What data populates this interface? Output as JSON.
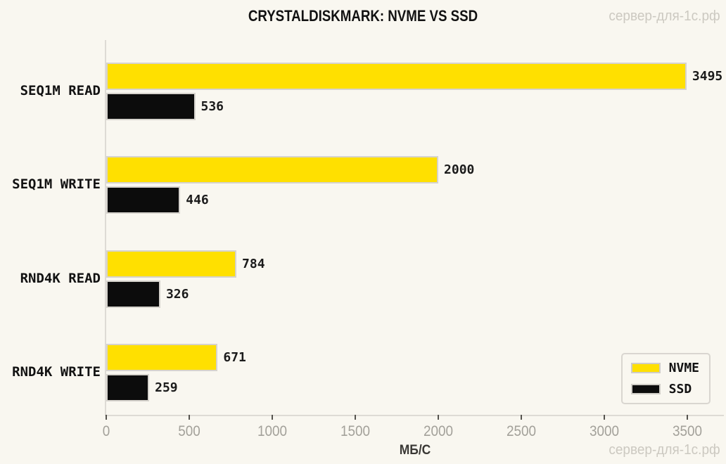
{
  "title": "CRYSTALDISKMARK: NVME VS SSD",
  "watermark_top": "сервер-для-1с.рф",
  "watermark_bottom": "сервер-для-1с.рф",
  "chart_data": {
    "type": "bar",
    "orientation": "horizontal",
    "title": "CRYSTALDISKMARK: NVME VS SSD",
    "categories": [
      "SEQ1M READ",
      "SEQ1M WRITE",
      "RND4K READ",
      "RND4K WRITE"
    ],
    "series": [
      {
        "name": "NVME",
        "color": "#ffe000",
        "values": [
          3495,
          2000,
          784,
          671
        ]
      },
      {
        "name": "SSD",
        "color": "#0c0c0c",
        "values": [
          536,
          446,
          326,
          259
        ]
      }
    ],
    "xlabel": "МБ/С",
    "xlim": [
      0,
      3720
    ],
    "xticks": [
      0,
      500,
      1000,
      1500,
      2000,
      2500,
      3000,
      3500
    ],
    "grid": false,
    "legend_position": "lower right",
    "bar_value_labels": true
  },
  "colors": {
    "background": "#f9f7f0",
    "nvme": "#ffe000",
    "ssd": "#0c0c0c",
    "bar_border": "#d6d3cd",
    "axis_line": "#dedbd5",
    "tick_label": "#a3a19a",
    "watermark": "#ccc9c1"
  }
}
